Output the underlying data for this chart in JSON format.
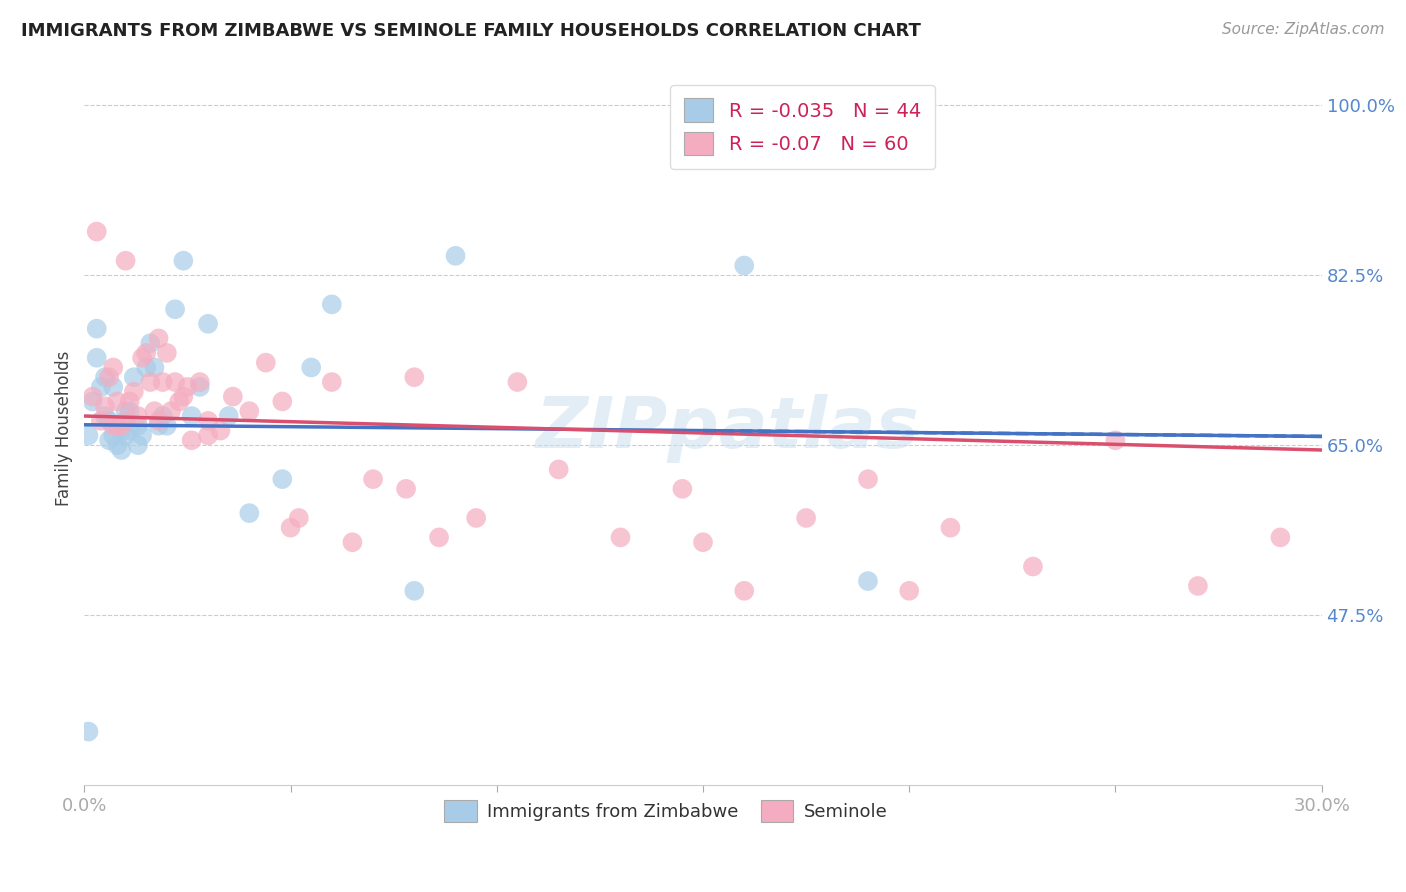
{
  "title": "IMMIGRANTS FROM ZIMBABWE VS SEMINOLE FAMILY HOUSEHOLDS CORRELATION CHART",
  "source": "Source: ZipAtlas.com",
  "ylabel": "Family Households",
  "xlim": [
    0.0,
    0.3
  ],
  "ylim": [
    0.3,
    1.035
  ],
  "xticks": [
    0.0,
    0.05,
    0.1,
    0.15,
    0.2,
    0.25,
    0.3
  ],
  "xticklabels": [
    "0.0%",
    "",
    "",
    "",
    "",
    "",
    "30.0%"
  ],
  "yticks": [
    0.475,
    0.65,
    0.825,
    1.0
  ],
  "yticklabels": [
    "47.5%",
    "65.0%",
    "82.5%",
    "100.0%"
  ],
  "blue_R": -0.035,
  "blue_N": 44,
  "pink_R": -0.07,
  "pink_N": 60,
  "blue_color": "#a8cce8",
  "pink_color": "#f4adc0",
  "blue_line_color": "#4472c4",
  "pink_line_color": "#d94f6e",
  "blue_points_x": [
    0.001,
    0.002,
    0.003,
    0.003,
    0.004,
    0.005,
    0.005,
    0.006,
    0.006,
    0.007,
    0.007,
    0.008,
    0.008,
    0.009,
    0.009,
    0.01,
    0.01,
    0.011,
    0.011,
    0.012,
    0.013,
    0.013,
    0.014,
    0.015,
    0.016,
    0.017,
    0.018,
    0.019,
    0.02,
    0.022,
    0.024,
    0.026,
    0.028,
    0.03,
    0.035,
    0.04,
    0.048,
    0.055,
    0.06,
    0.08,
    0.09,
    0.16,
    0.19,
    0.001
  ],
  "blue_points_y": [
    0.66,
    0.695,
    0.74,
    0.77,
    0.71,
    0.68,
    0.72,
    0.655,
    0.675,
    0.66,
    0.71,
    0.65,
    0.67,
    0.665,
    0.645,
    0.66,
    0.685,
    0.685,
    0.665,
    0.72,
    0.65,
    0.67,
    0.66,
    0.73,
    0.755,
    0.73,
    0.67,
    0.68,
    0.67,
    0.79,
    0.84,
    0.68,
    0.71,
    0.775,
    0.68,
    0.58,
    0.615,
    0.73,
    0.795,
    0.5,
    0.845,
    0.835,
    0.51,
    0.355
  ],
  "pink_points_x": [
    0.002,
    0.003,
    0.005,
    0.006,
    0.007,
    0.008,
    0.008,
    0.009,
    0.01,
    0.011,
    0.012,
    0.013,
    0.014,
    0.015,
    0.016,
    0.017,
    0.018,
    0.019,
    0.02,
    0.021,
    0.022,
    0.023,
    0.025,
    0.026,
    0.028,
    0.03,
    0.033,
    0.036,
    0.04,
    0.044,
    0.048,
    0.052,
    0.06,
    0.065,
    0.07,
    0.078,
    0.086,
    0.095,
    0.105,
    0.115,
    0.13,
    0.145,
    0.16,
    0.175,
    0.19,
    0.21,
    0.23,
    0.25,
    0.27,
    0.29,
    0.004,
    0.007,
    0.01,
    0.018,
    0.024,
    0.03,
    0.05,
    0.08,
    0.15,
    0.2
  ],
  "pink_points_y": [
    0.7,
    0.87,
    0.69,
    0.72,
    0.73,
    0.67,
    0.695,
    0.67,
    0.675,
    0.695,
    0.705,
    0.68,
    0.74,
    0.745,
    0.715,
    0.685,
    0.675,
    0.715,
    0.745,
    0.685,
    0.715,
    0.695,
    0.71,
    0.655,
    0.715,
    0.675,
    0.665,
    0.7,
    0.685,
    0.735,
    0.695,
    0.575,
    0.715,
    0.55,
    0.615,
    0.605,
    0.555,
    0.575,
    0.715,
    0.625,
    0.555,
    0.605,
    0.5,
    0.575,
    0.615,
    0.565,
    0.525,
    0.655,
    0.505,
    0.555,
    0.675,
    0.67,
    0.84,
    0.76,
    0.7,
    0.66,
    0.565,
    0.72,
    0.55,
    0.5
  ],
  "blue_line_x0": 0.0,
  "blue_line_y0": 0.671,
  "blue_line_x1": 0.3,
  "blue_line_y1": 0.659,
  "pink_line_x0": 0.0,
  "pink_line_y0": 0.68,
  "pink_line_x1": 0.3,
  "pink_line_y1": 0.645
}
